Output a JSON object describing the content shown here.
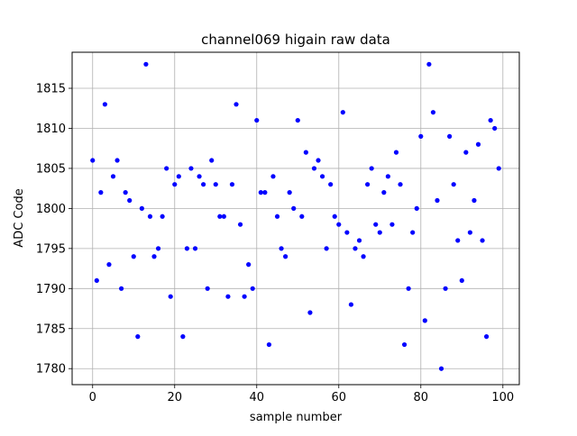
{
  "chart_data": {
    "type": "scatter",
    "title": "channel069 higain raw data",
    "xlabel": "sample number",
    "ylabel": "ADC Code",
    "xlim": [
      -5,
      104
    ],
    "ylim": [
      1778,
      1819.5
    ],
    "xticks": [
      0,
      20,
      40,
      60,
      80,
      100
    ],
    "yticks": [
      1780,
      1785,
      1790,
      1795,
      1800,
      1805,
      1810,
      1815
    ],
    "grid": true,
    "marker_color": "#0000ff",
    "series": [
      {
        "x": [
          0,
          1,
          2,
          3,
          4,
          5,
          6,
          7,
          8,
          9,
          10,
          11,
          12,
          13,
          14,
          15,
          16,
          17,
          18,
          19,
          20,
          21,
          22,
          23,
          24,
          25,
          26,
          27,
          28,
          29,
          30,
          31,
          32,
          33,
          34,
          35,
          36,
          37,
          38,
          39,
          40,
          41,
          42,
          43,
          44,
          45,
          46,
          47,
          48,
          49,
          50,
          51,
          52,
          53,
          54,
          55,
          56,
          57,
          58,
          59,
          60,
          61,
          62,
          63,
          64,
          65,
          66,
          67,
          68,
          69,
          70,
          71,
          72,
          73,
          74,
          75,
          76,
          77,
          78,
          79,
          80,
          81,
          82,
          83,
          84,
          85,
          86,
          87,
          88,
          89,
          90,
          91,
          92,
          93,
          94,
          95,
          96,
          97,
          98,
          99
        ],
        "y": [
          1806,
          1791,
          1802,
          1813,
          1793,
          1804,
          1806,
          1790,
          1802,
          1801,
          1794,
          1784,
          1800,
          1818,
          1799,
          1794,
          1795,
          1799,
          1805,
          1789,
          1803,
          1804,
          1784,
          1795,
          1805,
          1795,
          1804,
          1803,
          1790,
          1806,
          1803,
          1799,
          1799,
          1789,
          1803,
          1813,
          1798,
          1789,
          1793,
          1790,
          1811,
          1802,
          1802,
          1783,
          1804,
          1799,
          1795,
          1794,
          1802,
          1800,
          1811,
          1799,
          1807,
          1787,
          1805,
          1806,
          1804,
          1795,
          1803,
          1799,
          1798,
          1812,
          1797,
          1788,
          1795,
          1796,
          1794,
          1803,
          1805,
          1798,
          1797,
          1802,
          1804,
          1798,
          1807,
          1803,
          1783,
          1790,
          1797,
          1800,
          1809,
          1786,
          1818,
          1812,
          1801,
          1780,
          1790,
          1809,
          1803,
          1796,
          1791,
          1807,
          1797,
          1801,
          1808,
          1796,
          1784,
          1811,
          1810,
          1805
        ]
      }
    ]
  }
}
